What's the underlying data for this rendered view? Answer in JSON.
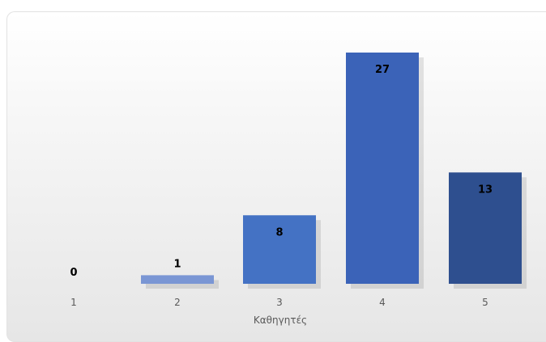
{
  "chart_data": {
    "type": "bar",
    "categories": [
      "1",
      "2",
      "3",
      "4",
      "5"
    ],
    "values": [
      0,
      1,
      8,
      27,
      13
    ],
    "title": "",
    "xlabel": "Καθηγητές",
    "ylabel": "",
    "ylim": [
      0,
      28
    ],
    "grid": false,
    "legend": "none",
    "colors": [
      "#4a72c4",
      "#7a96d4",
      "#4472c4",
      "#3b63b8",
      "#2e4f8f"
    ],
    "label_colors": [
      "#000000",
      "#000000",
      "#000000",
      "#000000",
      "#000000"
    ]
  }
}
